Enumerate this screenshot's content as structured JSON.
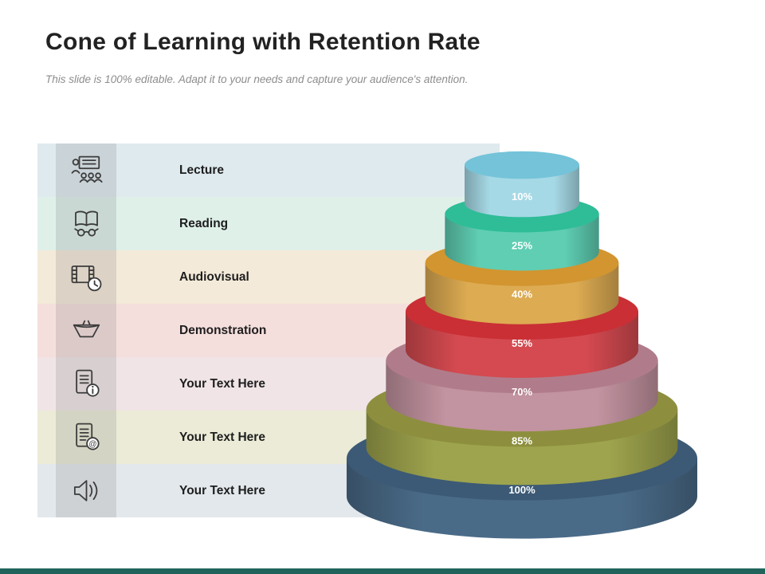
{
  "slide": {
    "title": "Cone of Learning with Retention Rate",
    "subtitle": "This slide is 100% editable. Adapt it to your needs and capture your audience's attention.",
    "accent_bar_color": "#20635a",
    "background_color": "#ffffff"
  },
  "chart_data": {
    "type": "funnel",
    "variant": "stacked-3d-cone",
    "title": "Cone of Learning with Retention Rate",
    "value_label": "Retention rate",
    "unit": "%",
    "legend_position": "left-table",
    "categories": [
      "Lecture",
      "Reading",
      "Audiovisual",
      "Demonstration",
      "Your Text Here",
      "Your Text Here",
      "Your Text Here"
    ],
    "values": [
      10,
      25,
      40,
      55,
      70,
      85,
      100
    ],
    "levels": [
      {
        "label": "Lecture",
        "retention": "10%",
        "value": 10,
        "icon": "presentation-icon",
        "top_color": "#74c3d9",
        "side_color": "#a6d9e6",
        "row_tint": "#dfeaee"
      },
      {
        "label": "Reading",
        "retention": "25%",
        "value": 25,
        "icon": "book-glasses-icon",
        "top_color": "#2ebd97",
        "side_color": "#5fceb3",
        "row_tint": "#dff0e9"
      },
      {
        "label": "Audiovisual",
        "retention": "40%",
        "value": 40,
        "icon": "film-clock-icon",
        "top_color": "#d2952f",
        "side_color": "#ddab52",
        "row_tint": "#f4ead9"
      },
      {
        "label": "Demonstration",
        "retention": "55%",
        "value": 55,
        "icon": "funnel-icon",
        "top_color": "#c92f35",
        "side_color": "#d44a50",
        "row_tint": "#f5dfdd"
      },
      {
        "label": "Your Text Here",
        "retention": "70%",
        "value": 70,
        "icon": "document-info-icon",
        "top_color": "#b07c8b",
        "side_color": "#c293a0",
        "row_tint": "#f0e4e6"
      },
      {
        "label": "Your Text Here",
        "retention": "85%",
        "value": 85,
        "icon": "document-at-icon",
        "top_color": "#8d8f3e",
        "side_color": "#9ea44d",
        "row_tint": "#ebebd7"
      },
      {
        "label": "Your Text Here",
        "retention": "100%",
        "value": 100,
        "icon": "speaker-icon",
        "top_color": "#3c5a76",
        "side_color": "#4a6b88",
        "row_tint": "#e3e8ec"
      }
    ]
  }
}
